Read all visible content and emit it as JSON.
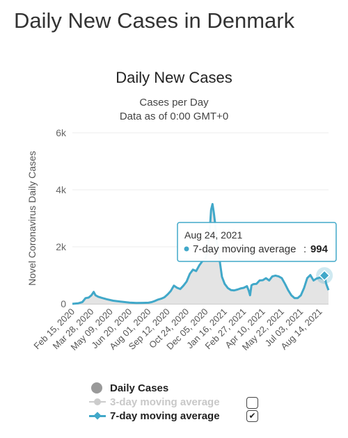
{
  "page": {
    "title": "Daily New Cases in Denmark"
  },
  "chart_data": {
    "type": "area",
    "title": "Daily New Cases",
    "subtitle": "Cases per Day",
    "subtitle2": "Data as of 0:00 GMT+0",
    "ylabel": "Novel Coronavirus Daily Cases",
    "xlabel": "",
    "ylim": [
      0,
      6000
    ],
    "yticks": [
      {
        "value": 0,
        "label": "0"
      },
      {
        "value": 2000,
        "label": "2k"
      },
      {
        "value": 4000,
        "label": "4k"
      },
      {
        "value": 6000,
        "label": "6k"
      }
    ],
    "xlim": [
      "2020-02-15",
      "2021-09-02"
    ],
    "xticks": [
      "Feb 15, 2020",
      "Mar 28, 2020",
      "May 09, 2020",
      "Jun 20, 2020",
      "Aug 01, 2020",
      "Sep 12, 2020",
      "Oct 24, 2020",
      "Dec 05, 2020",
      "Jan 16, 2021",
      "Feb 27, 2021",
      "Apr 10, 2021",
      "May 22, 2021",
      "Jul 03, 2021",
      "Aug 14, 2021"
    ],
    "xtick_dates": [
      "2020-02-15",
      "2020-03-28",
      "2020-05-09",
      "2020-06-20",
      "2020-08-01",
      "2020-09-12",
      "2020-10-24",
      "2020-12-05",
      "2021-01-16",
      "2021-02-27",
      "2021-04-10",
      "2021-05-22",
      "2021-07-03",
      "2021-08-14"
    ],
    "colors": {
      "series7": "#41a8c9",
      "daily": "#999999",
      "daily_fill": "#e4e4e4",
      "tooltip_border": "#41a8c9"
    },
    "series": [
      {
        "name": "7-day moving average",
        "x": [
          "2020-02-15",
          "2020-02-28",
          "2020-03-08",
          "2020-03-15",
          "2020-03-22",
          "2020-03-28",
          "2020-04-02",
          "2020-04-06",
          "2020-04-12",
          "2020-04-20",
          "2020-05-01",
          "2020-05-15",
          "2020-06-01",
          "2020-06-20",
          "2020-07-05",
          "2020-07-20",
          "2020-08-01",
          "2020-08-08",
          "2020-08-15",
          "2020-08-22",
          "2020-08-29",
          "2020-09-05",
          "2020-09-12",
          "2020-09-19",
          "2020-09-26",
          "2020-10-03",
          "2020-10-10",
          "2020-10-17",
          "2020-10-24",
          "2020-10-31",
          "2020-11-07",
          "2020-11-14",
          "2020-11-21",
          "2020-11-28",
          "2020-12-05",
          "2020-12-10",
          "2020-12-14",
          "2020-12-17",
          "2020-12-20",
          "2020-12-23",
          "2020-12-26",
          "2020-12-29",
          "2021-01-02",
          "2021-01-06",
          "2021-01-10",
          "2021-01-16",
          "2021-01-23",
          "2021-01-30",
          "2021-02-06",
          "2021-02-13",
          "2021-02-20",
          "2021-02-27",
          "2021-03-06",
          "2021-03-10",
          "2021-03-13",
          "2021-03-16",
          "2021-03-20",
          "2021-03-27",
          "2021-04-03",
          "2021-04-10",
          "2021-04-17",
          "2021-04-24",
          "2021-05-01",
          "2021-05-08",
          "2021-05-15",
          "2021-05-22",
          "2021-05-29",
          "2021-06-05",
          "2021-06-12",
          "2021-06-19",
          "2021-06-26",
          "2021-07-03",
          "2021-07-10",
          "2021-07-17",
          "2021-07-24",
          "2021-07-31",
          "2021-08-07",
          "2021-08-14",
          "2021-08-21",
          "2021-08-24",
          "2021-08-28",
          "2021-09-02"
        ],
        "values": [
          0,
          20,
          60,
          200,
          220,
          300,
          420,
          300,
          250,
          210,
          160,
          110,
          75,
          45,
          30,
          35,
          40,
          60,
          100,
          150,
          180,
          230,
          330,
          450,
          640,
          560,
          520,
          640,
          780,
          1050,
          1200,
          1150,
          1350,
          1500,
          1600,
          1900,
          2600,
          3300,
          3500,
          3200,
          2800,
          2200,
          1900,
          1400,
          950,
          700,
          550,
          480,
          470,
          500,
          540,
          560,
          620,
          460,
          300,
          650,
          690,
          700,
          820,
          830,
          900,
          820,
          960,
          990,
          960,
          900,
          700,
          480,
          300,
          200,
          200,
          300,
          550,
          900,
          1010,
          820,
          890,
          920,
          880,
          994,
          700,
          480
        ]
      }
    ],
    "tooltip": {
      "date": "Aug 24, 2021",
      "series": "7-day moving average",
      "value": "994"
    },
    "legend_position": "bottom"
  },
  "legend": [
    {
      "label": "Daily Cases"
    },
    {
      "label": "3-day moving average"
    },
    {
      "label": "7-day moving average"
    }
  ]
}
